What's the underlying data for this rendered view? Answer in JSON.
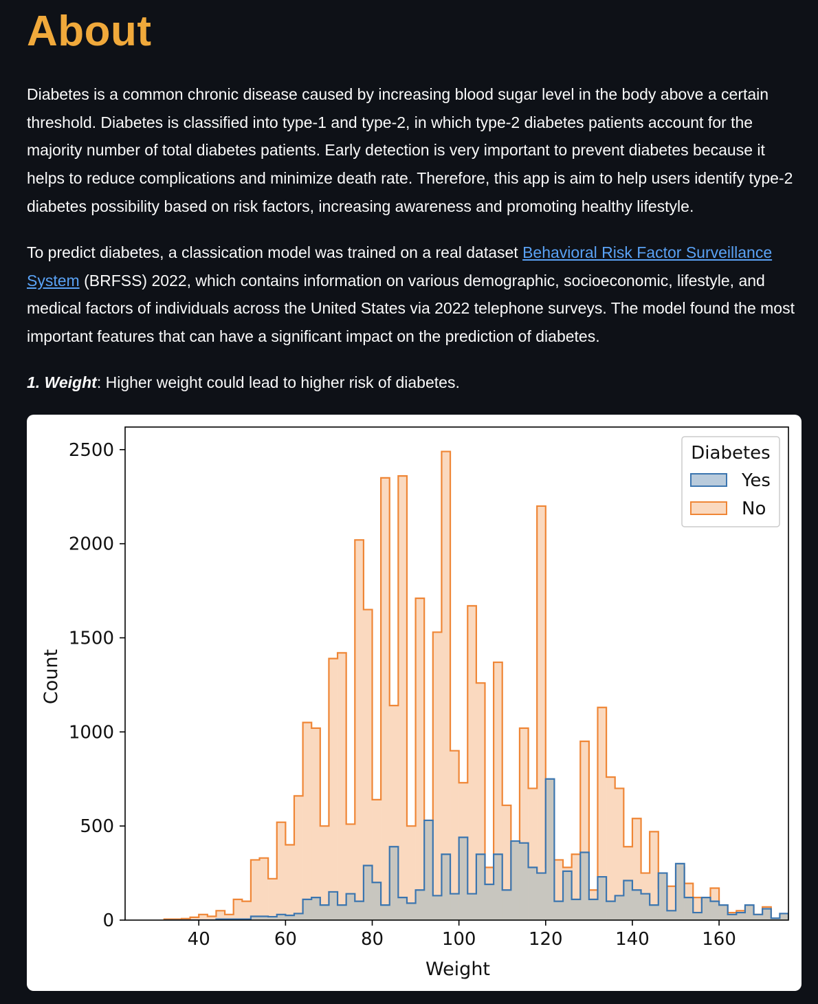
{
  "page": {
    "title": "About",
    "paragraph1": "Diabetes is a common chronic disease caused by increasing blood sugar level in the body above a certain threshold. Diabetes is classified into type-1 and type-2, in which type-2 diabetes patients account for the majority number of total diabetes patients. Early detection is very important to prevent diabetes because it helps to reduce complications and minimize death rate.  Therefore, this app is aim to help users identify type-2 diabetes possibility based on risk factors, increasing awareness and promoting healthy lifestyle.",
    "paragraph2_before": "To predict diabetes, a classication model was trained on a real dataset ",
    "paragraph2_link": "Behavioral Risk Factor Surveillance System",
    "paragraph2_after": " (BRFSS) 2022, which contains information on various demographic, socioeconomic, lifestyle, and medical factors of individuals across the United States via 2022 telephone surveys. The model found the most important features that can have a significant impact on the prediction of diabetes.",
    "feature_label": "1. Weight",
    "feature_text": ": Higher weight could lead to higher risk of diabetes."
  },
  "colors": {
    "background": "#0e1117",
    "title": "#f0a93b",
    "link": "#5aa2f5",
    "yes_line": "#3b75af",
    "yes_fill": "#b9cbdc",
    "no_line": "#ef8636",
    "no_fill": "#fad9bf",
    "overlap_fill": "#c8c6bf"
  },
  "chart_data": {
    "type": "histogram",
    "xlabel": "Weight",
    "ylabel": "Count",
    "xlim": [
      23,
      176
    ],
    "ylim": [
      0,
      2620
    ],
    "xticks": [
      40,
      60,
      80,
      100,
      120,
      140,
      160
    ],
    "yticks": [
      0,
      500,
      1000,
      1500,
      2000,
      2500
    ],
    "legend_title": "Diabetes",
    "legend_position": "top-right",
    "legend_entries": [
      "Yes",
      "No"
    ],
    "bin_start": 32,
    "bin_width": 2,
    "series": [
      {
        "name": "No",
        "values": [
          5,
          5,
          8,
          15,
          30,
          20,
          50,
          30,
          110,
          100,
          320,
          330,
          220,
          520,
          400,
          660,
          1050,
          1020,
          500,
          1390,
          1420,
          510,
          2020,
          1650,
          640,
          2350,
          1140,
          2360,
          500,
          1710,
          530,
          1530,
          2490,
          900,
          730,
          1670,
          1260,
          280,
          1370,
          610,
          160,
          1020,
          700,
          2200,
          280,
          320,
          280,
          350,
          950,
          160,
          1130,
          760,
          700,
          390,
          540,
          250,
          470,
          170,
          180,
          280,
          195,
          120,
          95,
          170,
          80,
          40,
          50,
          70,
          30,
          70,
          6,
          5,
          5,
          5,
          5,
          5,
          5,
          5,
          5,
          5,
          5,
          5
        ]
      },
      {
        "name": "Yes",
        "values": [
          0,
          0,
          0,
          0,
          0,
          0,
          5,
          5,
          5,
          5,
          20,
          20,
          18,
          30,
          25,
          35,
          110,
          120,
          80,
          150,
          80,
          140,
          100,
          290,
          200,
          80,
          390,
          120,
          90,
          160,
          530,
          130,
          350,
          140,
          440,
          140,
          350,
          190,
          350,
          160,
          420,
          410,
          280,
          250,
          750,
          100,
          260,
          110,
          360,
          110,
          230,
          100,
          130,
          210,
          160,
          140,
          80,
          250,
          50,
          300,
          120,
          40,
          120,
          100,
          80,
          30,
          40,
          80,
          30,
          60,
          10,
          35,
          10,
          30,
          5,
          5,
          5,
          5,
          5,
          5,
          5,
          5
        ]
      }
    ]
  }
}
